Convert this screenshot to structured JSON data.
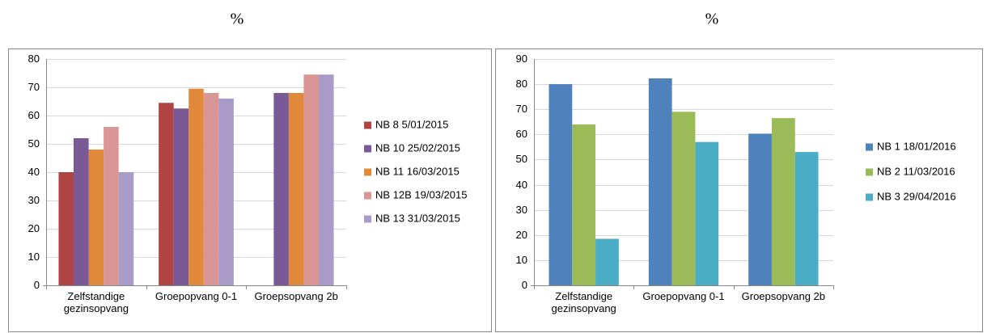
{
  "chart_data": [
    {
      "type": "bar",
      "title": "%",
      "categories": [
        "Zelfstandige gezinsopvang",
        "Groepopvang 0-1",
        "Groepsopvang 2b"
      ],
      "series": [
        {
          "name": "NB 8 5/01/2015",
          "color": "#b04343",
          "values": [
            40,
            64.5,
            null
          ]
        },
        {
          "name": "NB 10 25/02/2015",
          "color": "#7a5a96",
          "values": [
            52,
            62.5,
            68
          ]
        },
        {
          "name": "NB 11 16/03/2015",
          "color": "#e0893b",
          "values": [
            48,
            69.5,
            68
          ]
        },
        {
          "name": "NB 12B 19/03/2015",
          "color": "#d99694",
          "values": [
            56,
            68,
            74.5
          ]
        },
        {
          "name": "NB 13 31/03/2015",
          "color": "#a99bc8",
          "values": [
            40,
            66,
            74.5
          ]
        }
      ],
      "ylim": [
        0,
        80
      ],
      "yticks": [
        0,
        10,
        20,
        30,
        40,
        50,
        60,
        70,
        80
      ],
      "grid": true,
      "legend": "right"
    },
    {
      "type": "bar",
      "title": "%",
      "categories": [
        "Zelfstandige gezinsopvang",
        "Groepopvang 0-1",
        "Groepsopvang 2b"
      ],
      "series": [
        {
          "name": "NB 1 18/01/2016",
          "color": "#4f81bd",
          "values": [
            80,
            82.3,
            60.3
          ]
        },
        {
          "name": "NB 2 11/03/2016",
          "color": "#9bbb59",
          "values": [
            64,
            69,
            66.5
          ]
        },
        {
          "name": "NB 3 29/04/2016",
          "color": "#4bacc6",
          "values": [
            18.5,
            57,
            53
          ]
        }
      ],
      "ylim": [
        0,
        90
      ],
      "yticks": [
        0,
        10,
        20,
        30,
        40,
        50,
        60,
        70,
        80,
        90
      ],
      "grid": true,
      "legend": "right"
    }
  ]
}
